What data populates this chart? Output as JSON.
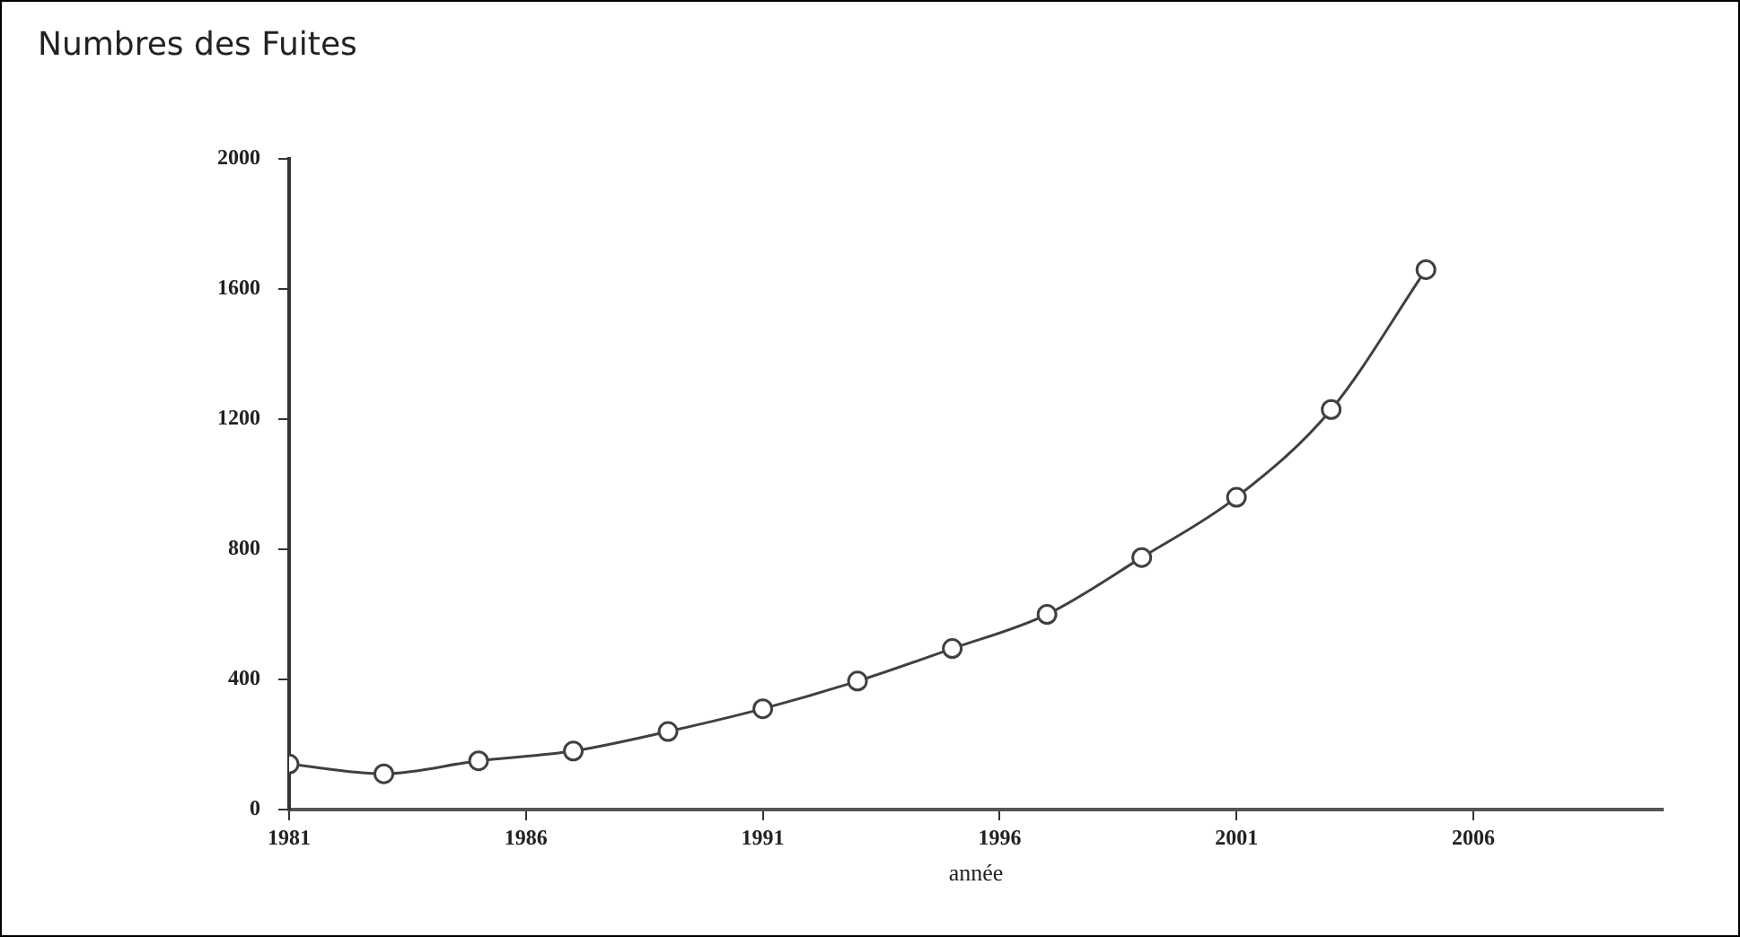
{
  "chart_data": {
    "type": "line",
    "title": "Numbres des Fuites",
    "xlabel": "année",
    "x": [
      1981,
      1983,
      1985,
      1987,
      1989,
      1991,
      1993,
      1995,
      1997,
      1999,
      2001,
      2003,
      2005
    ],
    "series": [
      {
        "color": "#404040",
        "values": [
          140,
          110,
          150,
          180,
          240,
          310,
          395,
          495,
          600,
          775,
          960,
          1230,
          1660
        ]
      }
    ],
    "xlim": [
      1981,
      2010
    ],
    "xticks": [
      1981,
      1986,
      1991,
      1996,
      2001,
      2006
    ],
    "ylim": [
      0,
      2000
    ],
    "yticks": [
      0,
      400,
      800,
      1200,
      1600,
      2000
    ],
    "grid": false,
    "legend": false,
    "marker": "circle",
    "line_style": "solid"
  }
}
